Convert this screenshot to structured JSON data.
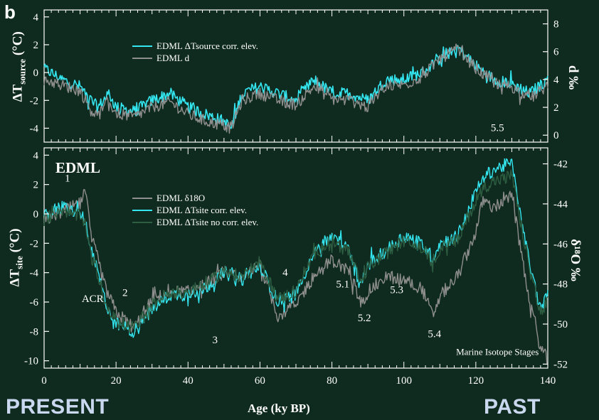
{
  "panel_letter": "b",
  "present_label": "PRESENT",
  "past_label": "PAST",
  "edml_label": "EDML",
  "colors": {
    "background": "#0f2a1f",
    "plot_background": "#0f2a1f",
    "cyan": "#33e6f0",
    "gray": "#8f8f8f",
    "dark_green": "#2e5e42",
    "axis": "#ffffff"
  },
  "chart_data": [
    {
      "type": "line",
      "panel": "top",
      "xlabel": "Age (ky BP)",
      "ylabel_left": {
        "main": "ΔT",
        "sub": "source",
        "unit": " (°C)"
      },
      "ylabel_right": "d ‰",
      "xlim": [
        0,
        140
      ],
      "ylim_left": [
        -5,
        4.5
      ],
      "ylim_right": [
        -0.5,
        9.0
      ],
      "yticks_left": [
        "-4",
        "-2",
        "0",
        "2",
        "4"
      ],
      "yticks_right": [
        "0",
        "2",
        "4",
        "6",
        "8"
      ],
      "legend": [
        "EDML ΔTsource corr. elev.",
        "EDML d"
      ],
      "series": [
        {
          "name": "EDML ΔTsource corr. elev.",
          "axis": "left",
          "color": "#33e6f0",
          "x": [
            0,
            5,
            10,
            13,
            15,
            18,
            20,
            25,
            30,
            35,
            40,
            45,
            50,
            52,
            55,
            60,
            65,
            70,
            75,
            80,
            85,
            90,
            95,
            100,
            105,
            110,
            115,
            120,
            125,
            130,
            135,
            140
          ],
          "y": [
            0.3,
            -0.5,
            -1.0,
            -2.0,
            -2.5,
            -1.5,
            -2.5,
            -2.8,
            -2.0,
            -1.5,
            -2.5,
            -3.0,
            -3.5,
            -4.0,
            -1.5,
            -1.0,
            -1.5,
            -2.0,
            -0.5,
            -1.5,
            -1.5,
            -2.0,
            -0.5,
            -0.5,
            0.0,
            1.0,
            1.8,
            0.5,
            -0.5,
            -0.8,
            -1.5,
            -0.5
          ]
        },
        {
          "name": "EDML d",
          "axis": "right",
          "color": "#8f8f8f",
          "x": [
            0,
            5,
            10,
            13,
            15,
            18,
            20,
            25,
            30,
            35,
            40,
            45,
            50,
            52,
            55,
            60,
            65,
            70,
            75,
            80,
            85,
            90,
            95,
            100,
            105,
            110,
            115,
            120,
            125,
            130,
            135,
            140
          ],
          "y": [
            4.0,
            3.6,
            3.2,
            1.8,
            1.4,
            2.4,
            1.6,
            1.3,
            2.0,
            2.4,
            1.5,
            1.0,
            0.7,
            0.5,
            2.5,
            3.0,
            2.5,
            2.2,
            3.5,
            2.6,
            2.5,
            2.0,
            3.6,
            3.6,
            4.2,
            5.5,
            6.2,
            4.8,
            3.8,
            3.5,
            2.6,
            3.6
          ]
        }
      ],
      "annotations": [
        {
          "text": "5.5",
          "x": 126,
          "y": -4.2
        }
      ]
    },
    {
      "type": "line",
      "panel": "bottom",
      "xlabel": "Age (ky BP)",
      "ylabel_left": {
        "main": "ΔT",
        "sub": "site",
        "unit": " (°C)"
      },
      "ylabel_right": "δ¹⁸O ‰",
      "xlim": [
        0,
        140
      ],
      "ylim_left": [
        -10.5,
        4.5
      ],
      "ylim_right": [
        -52.2,
        -41.2
      ],
      "xticks": [
        "0",
        "20",
        "40",
        "60",
        "80",
        "100",
        "120",
        "140"
      ],
      "yticks_left": [
        "-10",
        "-8",
        "-6",
        "-4",
        "-2",
        "0",
        "2",
        "4"
      ],
      "yticks_right": [
        "-52",
        "-50",
        "-48",
        "-46",
        "-44",
        "-42"
      ],
      "legend": [
        "EDML δ18O",
        "EDML ΔTsite corr. elev.",
        "EDML ΔTsite no corr. elev."
      ],
      "series": [
        {
          "name": "EDML δ18O",
          "axis": "right",
          "color": "#8f8f8f",
          "x": [
            0,
            5,
            10,
            11.5,
            13,
            15,
            17,
            20,
            25,
            30,
            35,
            40,
            45,
            50,
            55,
            60,
            65,
            70,
            75,
            80,
            85,
            88,
            90,
            95,
            100,
            105,
            108,
            110,
            115,
            120,
            122,
            125,
            130,
            135,
            138,
            140
          ],
          "y": [
            -44.8,
            -44.4,
            -44.0,
            -43.4,
            -45.6,
            -46.8,
            -48.2,
            -49.4,
            -50.2,
            -48.8,
            -48.4,
            -48.4,
            -48.0,
            -47.4,
            -47.8,
            -47.0,
            -49.6,
            -49.0,
            -47.6,
            -46.8,
            -47.4,
            -49.0,
            -48.4,
            -47.6,
            -47.8,
            -48.2,
            -49.6,
            -48.6,
            -47.6,
            -45.4,
            -43.8,
            -44.2,
            -43.6,
            -49.0,
            -51.2,
            -51.8
          ]
        },
        {
          "name": "EDML ΔTsite corr. elev.",
          "axis": "left",
          "color": "#33e6f0",
          "x": [
            0,
            5,
            10,
            11.5,
            13,
            15,
            17,
            20,
            25,
            30,
            35,
            40,
            45,
            50,
            55,
            60,
            65,
            70,
            75,
            80,
            85,
            88,
            90,
            95,
            100,
            105,
            108,
            110,
            115,
            120,
            122,
            125,
            130,
            135,
            138,
            140
          ],
          "y": [
            -0.2,
            0.5,
            0.0,
            -0.5,
            -2.5,
            -4.0,
            -6.0,
            -7.5,
            -8.0,
            -6.5,
            -5.5,
            -5.5,
            -5.0,
            -4.0,
            -4.5,
            -3.5,
            -6.0,
            -5.5,
            -2.5,
            -1.5,
            -2.5,
            -5.0,
            -3.5,
            -2.5,
            -1.5,
            -2.0,
            -3.0,
            -2.0,
            -1.5,
            1.5,
            2.5,
            3.0,
            3.5,
            -3.5,
            -6.5,
            -5.5
          ]
        },
        {
          "name": "EDML ΔTsite no corr. elev.",
          "axis": "left",
          "color": "#2e5e42",
          "x": [
            0,
            5,
            10,
            11.5,
            13,
            15,
            17,
            20,
            25,
            30,
            35,
            40,
            45,
            50,
            55,
            60,
            65,
            70,
            75,
            80,
            85,
            88,
            90,
            95,
            100,
            105,
            108,
            110,
            115,
            120,
            122,
            125,
            130,
            135,
            138,
            140
          ],
          "y": [
            -0.4,
            0.3,
            -0.2,
            -0.8,
            -2.8,
            -4.2,
            -6.2,
            -7.3,
            -7.8,
            -6.2,
            -5.3,
            -5.3,
            -4.8,
            -3.9,
            -4.3,
            -3.3,
            -5.8,
            -5.3,
            -2.7,
            -1.8,
            -2.7,
            -4.8,
            -3.6,
            -2.7,
            -1.8,
            -2.3,
            -3.3,
            -2.3,
            -1.8,
            1.0,
            1.8,
            2.2,
            2.6,
            -3.8,
            -6.8,
            -6.0
          ]
        }
      ],
      "annotations": [
        {
          "text": "1",
          "x": 6.5,
          "y": 2.2
        },
        {
          "text": "ACR",
          "x": 13.5,
          "y": -6.0
        },
        {
          "text": "2",
          "x": 22.5,
          "y": -5.6
        },
        {
          "text": "3",
          "x": 47.5,
          "y": -8.8
        },
        {
          "text": "4",
          "x": 67,
          "y": -4.2
        },
        {
          "text": "5.1",
          "x": 83,
          "y": -5.0
        },
        {
          "text": "5.2",
          "x": 89,
          "y": -7.3
        },
        {
          "text": "5.3",
          "x": 98,
          "y": -5.4
        },
        {
          "text": "5.4",
          "x": 108.5,
          "y": -8.4
        },
        {
          "text": "Marine Isotope Stages",
          "x": 126,
          "y": -9.6
        }
      ]
    }
  ]
}
